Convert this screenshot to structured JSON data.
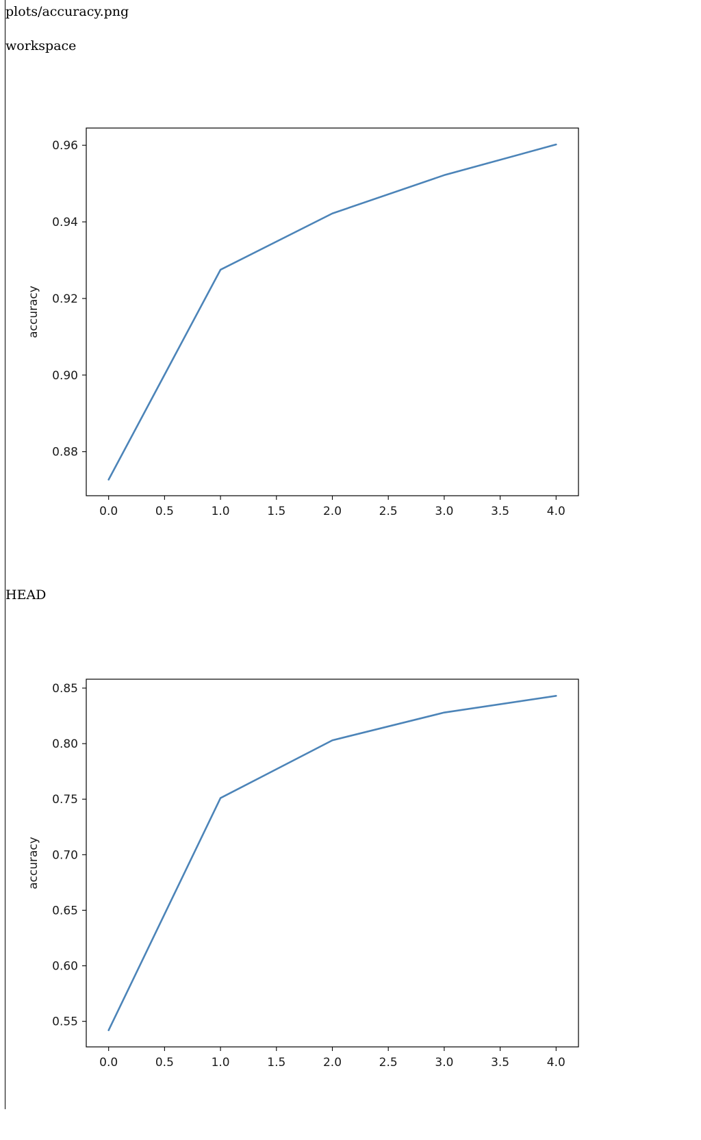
{
  "file": {
    "path": "plots/accuracy.png"
  },
  "sections": [
    {
      "label": "workspace",
      "chart_data": {
        "type": "line",
        "title": "",
        "xlabel": "",
        "ylabel": "accuracy",
        "x": [
          0,
          1,
          2,
          3,
          4
        ],
        "series": [
          {
            "values": [
              0.8727,
              0.9275,
              0.9422,
              0.9522,
              0.9602
            ],
            "color": "#4c84b8"
          }
        ],
        "xlim": [
          -0.2,
          4.2
        ],
        "ylim": [
          0.8685,
          0.9645
        ],
        "xticks": [
          0.0,
          0.5,
          1.0,
          1.5,
          2.0,
          2.5,
          3.0,
          3.5,
          4.0
        ],
        "xtick_labels": [
          "0.0",
          "0.5",
          "1.0",
          "1.5",
          "2.0",
          "2.5",
          "3.0",
          "3.5",
          "4.0"
        ],
        "yticks": [
          0.88,
          0.9,
          0.92,
          0.94,
          0.96
        ],
        "ytick_labels": [
          "0.88",
          "0.90",
          "0.92",
          "0.94",
          "0.96"
        ],
        "grid": false,
        "legend": "none"
      }
    },
    {
      "label": "HEAD",
      "chart_data": {
        "type": "line",
        "title": "",
        "xlabel": "",
        "ylabel": "accuracy",
        "x": [
          0,
          1,
          2,
          3,
          4
        ],
        "series": [
          {
            "values": [
              0.542,
              0.751,
              0.803,
              0.828,
              0.843
            ],
            "color": "#4c84b8"
          }
        ],
        "xlim": [
          -0.2,
          4.2
        ],
        "ylim": [
          0.527,
          0.858
        ],
        "xticks": [
          0.0,
          0.5,
          1.0,
          1.5,
          2.0,
          2.5,
          3.0,
          3.5,
          4.0
        ],
        "xtick_labels": [
          "0.0",
          "0.5",
          "1.0",
          "1.5",
          "2.0",
          "2.5",
          "3.0",
          "3.5",
          "4.0"
        ],
        "yticks": [
          0.55,
          0.6,
          0.65,
          0.7,
          0.75,
          0.8,
          0.85
        ],
        "ytick_labels": [
          "0.55",
          "0.60",
          "0.65",
          "0.70",
          "0.75",
          "0.80",
          "0.85"
        ],
        "grid": false,
        "legend": "none"
      }
    }
  ]
}
